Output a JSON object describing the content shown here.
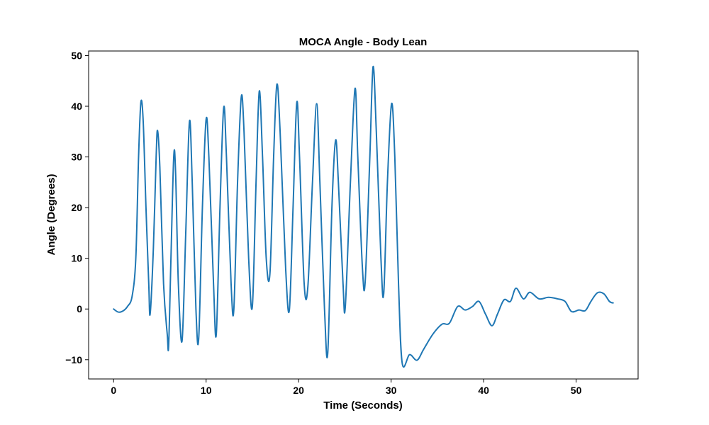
{
  "chart_data": {
    "type": "line",
    "title": "MOCA Angle - Body Lean",
    "xlabel": "Time (Seconds)",
    "ylabel": "Angle (Degrees)",
    "xlim": [
      -2.7,
      56.7
    ],
    "ylim": [
      -13.8,
      50.9
    ],
    "xticks": [
      0,
      10,
      20,
      30,
      40,
      50
    ],
    "yticks": [
      -10,
      0,
      10,
      20,
      30,
      40,
      50
    ],
    "grid": false,
    "line_color": "#1f77b4",
    "series": [
      {
        "name": "Angle",
        "points": [
          [
            0.0,
            0.0
          ],
          [
            0.5,
            -0.6
          ],
          [
            1.0,
            -0.4
          ],
          [
            1.5,
            0.5
          ],
          [
            2.0,
            2.5
          ],
          [
            2.4,
            10.0
          ],
          [
            2.7,
            30.0
          ],
          [
            2.95,
            40.8
          ],
          [
            3.2,
            37.0
          ],
          [
            3.5,
            20.0
          ],
          [
            3.8,
            5.0
          ],
          [
            3.95,
            -1.0
          ],
          [
            4.3,
            12.0
          ],
          [
            4.6,
            30.0
          ],
          [
            4.75,
            35.2
          ],
          [
            5.0,
            28.0
          ],
          [
            5.4,
            5.0
          ],
          [
            5.8,
            -5.0
          ],
          [
            5.95,
            -7.2
          ],
          [
            6.2,
            10.0
          ],
          [
            6.5,
            30.0
          ],
          [
            6.7,
            27.0
          ],
          [
            7.0,
            5.0
          ],
          [
            7.4,
            -6.3
          ],
          [
            7.8,
            15.0
          ],
          [
            8.2,
            37.0
          ],
          [
            8.5,
            25.0
          ],
          [
            8.9,
            0.0
          ],
          [
            9.2,
            -5.8
          ],
          [
            9.6,
            20.0
          ],
          [
            10.0,
            37.4
          ],
          [
            10.3,
            30.0
          ],
          [
            10.8,
            5.0
          ],
          [
            11.1,
            -5.0
          ],
          [
            11.5,
            20.0
          ],
          [
            11.9,
            39.7
          ],
          [
            12.2,
            30.0
          ],
          [
            12.7,
            5.0
          ],
          [
            13.0,
            0.0
          ],
          [
            13.4,
            25.0
          ],
          [
            13.8,
            41.8
          ],
          [
            14.1,
            35.0
          ],
          [
            14.6,
            10.0
          ],
          [
            15.0,
            0.5
          ],
          [
            15.4,
            25.0
          ],
          [
            15.75,
            43.0
          ],
          [
            16.1,
            30.0
          ],
          [
            16.5,
            10.0
          ],
          [
            16.9,
            7.0
          ],
          [
            17.3,
            30.0
          ],
          [
            17.65,
            44.3
          ],
          [
            18.0,
            35.0
          ],
          [
            18.6,
            8.0
          ],
          [
            19.0,
            -0.2
          ],
          [
            19.4,
            20.0
          ],
          [
            19.8,
            40.7
          ],
          [
            20.1,
            30.0
          ],
          [
            20.6,
            5.0
          ],
          [
            21.0,
            4.4
          ],
          [
            21.5,
            25.0
          ],
          [
            21.95,
            40.5
          ],
          [
            22.3,
            25.0
          ],
          [
            22.8,
            0.0
          ],
          [
            23.15,
            -8.7
          ],
          [
            23.6,
            20.0
          ],
          [
            24.0,
            33.3
          ],
          [
            24.3,
            25.0
          ],
          [
            24.8,
            5.0
          ],
          [
            25.05,
            0.5
          ],
          [
            25.6,
            25.0
          ],
          [
            26.1,
            43.5
          ],
          [
            26.4,
            30.0
          ],
          [
            26.9,
            8.0
          ],
          [
            27.2,
            5.5
          ],
          [
            27.7,
            30.0
          ],
          [
            28.05,
            47.8
          ],
          [
            28.4,
            35.0
          ],
          [
            28.9,
            10.0
          ],
          [
            29.2,
            3.0
          ],
          [
            29.6,
            25.0
          ],
          [
            30.05,
            40.5
          ],
          [
            30.4,
            30.0
          ],
          [
            30.8,
            5.0
          ],
          [
            31.2,
            -10.7
          ],
          [
            32.0,
            -9.0
          ],
          [
            32.8,
            -10.1
          ],
          [
            33.5,
            -8.0
          ],
          [
            34.5,
            -5.0
          ],
          [
            35.5,
            -3.0
          ],
          [
            36.3,
            -2.8
          ],
          [
            37.2,
            0.5
          ],
          [
            38.0,
            -0.2
          ],
          [
            38.8,
            0.5
          ],
          [
            39.5,
            1.5
          ],
          [
            40.2,
            -1.0
          ],
          [
            40.9,
            -3.3
          ],
          [
            41.5,
            -1.0
          ],
          [
            42.2,
            1.8
          ],
          [
            42.9,
            1.5
          ],
          [
            43.5,
            4.1
          ],
          [
            44.3,
            2.0
          ],
          [
            45.0,
            3.3
          ],
          [
            46.0,
            2.0
          ],
          [
            47.0,
            2.3
          ],
          [
            48.0,
            2.0
          ],
          [
            48.8,
            1.5
          ],
          [
            49.5,
            -0.5
          ],
          [
            50.3,
            -0.2
          ],
          [
            51.0,
            -0.3
          ],
          [
            51.6,
            1.5
          ],
          [
            52.3,
            3.2
          ],
          [
            53.0,
            3.0
          ],
          [
            53.6,
            1.5
          ],
          [
            54.0,
            1.2
          ]
        ]
      }
    ]
  }
}
